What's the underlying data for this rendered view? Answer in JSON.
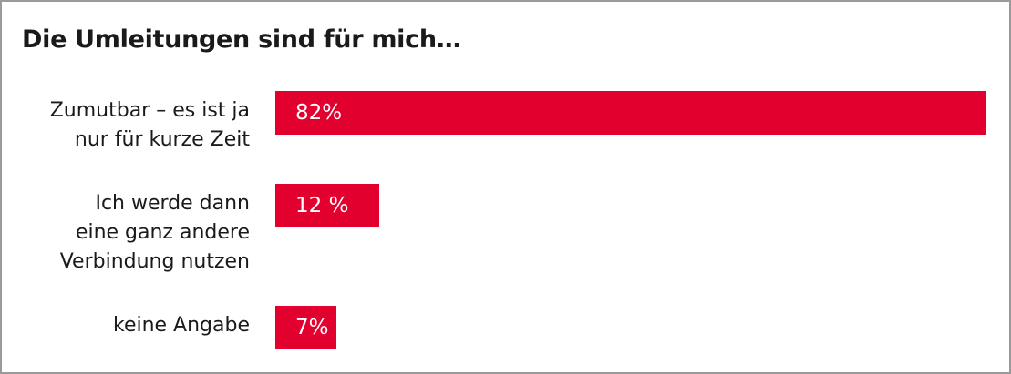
{
  "chart_data": {
    "type": "bar",
    "orientation": "horizontal",
    "title": "Die Umleitungen sind für mich…",
    "categories": [
      "Zumutbar – es ist ja\nnur für kurze Zeit",
      "Ich werde dann\neine ganz andere\nVerbindung nutzen",
      "keine Angabe"
    ],
    "values": [
      82,
      12,
      7
    ],
    "value_labels": [
      "82%",
      "12 %",
      "7%"
    ],
    "color": "#e2002f"
  }
}
